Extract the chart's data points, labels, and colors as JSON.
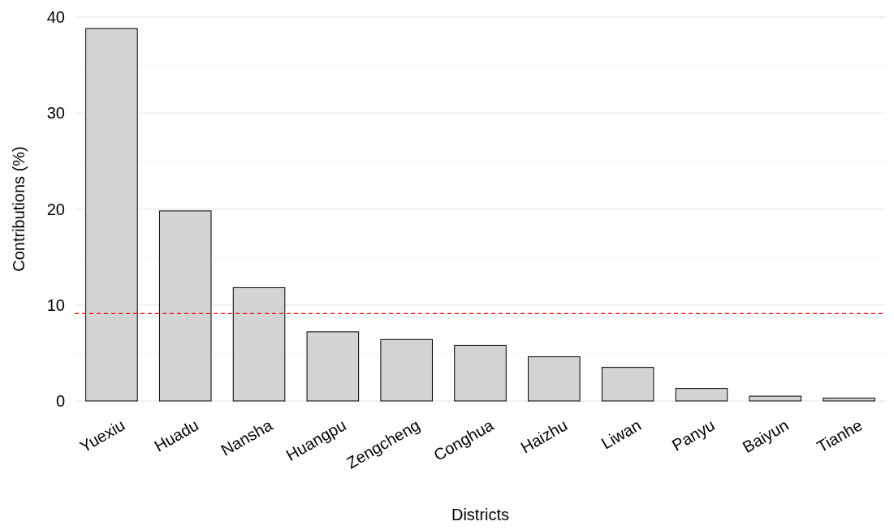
{
  "chart_data": {
    "type": "bar",
    "xlabel": "Districts",
    "ylabel": "Contributions (%)",
    "categories": [
      "Yuexiu",
      "Huadu",
      "Nansha",
      "Huangpu",
      "Zengcheng",
      "Conghua",
      "Haizhu",
      "Liwan",
      "Panyu",
      "Baiyun",
      "Tianhe"
    ],
    "values": [
      38.8,
      19.8,
      11.8,
      7.2,
      6.4,
      5.8,
      4.6,
      3.5,
      1.3,
      0.5,
      0.3
    ],
    "color": "#d3d3d3",
    "ylim": [
      0,
      40
    ],
    "yticks": [
      0,
      10,
      20,
      30,
      40
    ],
    "grid": "y",
    "ref_lines": [
      {
        "axis": "y",
        "value": 9.1,
        "color": "#ff0000",
        "line_style": "dashed"
      }
    ]
  }
}
